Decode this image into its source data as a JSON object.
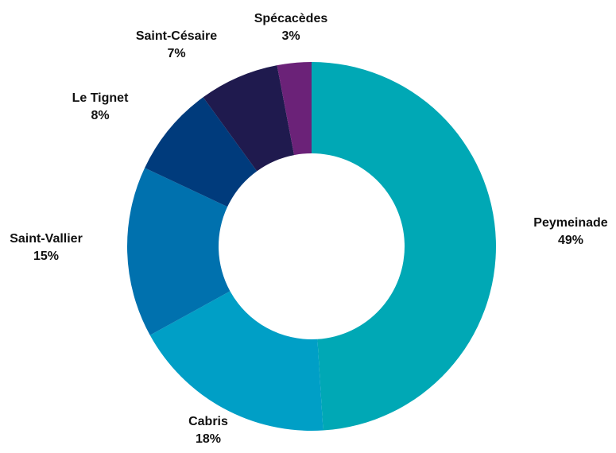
{
  "chart_data": {
    "type": "pie",
    "donut": true,
    "start": "top",
    "direction": "clockwise",
    "slices": [
      {
        "label": "Peymeinade",
        "value": 49,
        "value_label": "49%",
        "color": "#00A8B5"
      },
      {
        "label": "Cabris",
        "value": 18,
        "value_label": "18%",
        "color": "#009FC6"
      },
      {
        "label": "Saint-Vallier",
        "value": 15,
        "value_label": "15%",
        "color": "#0071AE"
      },
      {
        "label": "Le Tignet",
        "value": 8,
        "value_label": "8%",
        "color": "#003B7C"
      },
      {
        "label": "Saint-Césaire",
        "value": 7,
        "value_label": "7%",
        "color": "#1F1A4E"
      },
      {
        "label": "Spécacèdes",
        "value": 3,
        "value_label": "3%",
        "color": "#6B2278"
      }
    ]
  }
}
